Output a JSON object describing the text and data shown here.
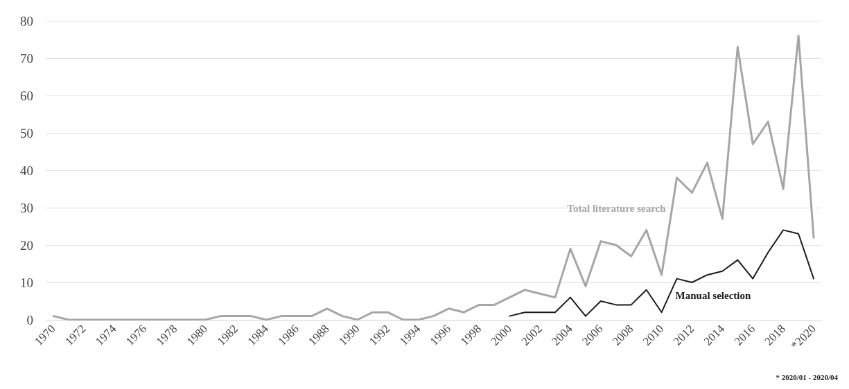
{
  "chart_data": {
    "type": "line",
    "categories": [
      "1970",
      null,
      "1972",
      null,
      "1974",
      null,
      "1976",
      null,
      "1978",
      null,
      "1980",
      null,
      "1982",
      null,
      "1984",
      null,
      "1986",
      null,
      "1988",
      null,
      "1990",
      null,
      "1992",
      null,
      "1994",
      null,
      "1996",
      null,
      "1998",
      null,
      "2000",
      null,
      "2002",
      null,
      "2004",
      null,
      "2006",
      null,
      "2008",
      null,
      "2010",
      null,
      "2012",
      null,
      "2014",
      null,
      "2016",
      null,
      "2018",
      null,
      "*2020"
    ],
    "series": [
      {
        "name": "Total literature search",
        "color": "#a6a6a6",
        "values": [
          1,
          0,
          0,
          0,
          0,
          0,
          0,
          0,
          0,
          0,
          0,
          1,
          1,
          1,
          0,
          1,
          1,
          1,
          3,
          1,
          0,
          2,
          2,
          0,
          0,
          1,
          3,
          2,
          4,
          4,
          6,
          8,
          7,
          6,
          19,
          9,
          21,
          20,
          17,
          24,
          12,
          38,
          34,
          42,
          27,
          73,
          47,
          53,
          35,
          76,
          22
        ]
      },
      {
        "name": "Manual selection",
        "color": "#1a1a1a",
        "values": [
          null,
          null,
          null,
          null,
          null,
          null,
          null,
          null,
          null,
          null,
          null,
          null,
          null,
          null,
          null,
          null,
          null,
          null,
          null,
          null,
          null,
          null,
          null,
          null,
          null,
          null,
          null,
          null,
          null,
          null,
          1,
          2,
          2,
          2,
          6,
          1,
          5,
          4,
          4,
          8,
          2,
          11,
          10,
          12,
          13,
          16,
          11,
          18,
          24,
          23,
          11
        ]
      }
    ],
    "ylim": [
      0,
      80
    ],
    "yticks": [
      0,
      10,
      20,
      30,
      40,
      50,
      60,
      70,
      80
    ],
    "grid": "y",
    "legend": false,
    "marker": "none",
    "line_style": "solid",
    "annotations": [
      "* 2020/01 - 2020/04"
    ]
  }
}
